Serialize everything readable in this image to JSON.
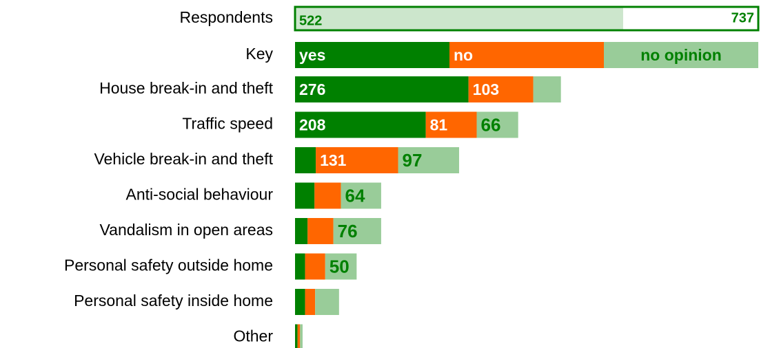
{
  "chart_data": {
    "type": "stacked-barh",
    "respondents": {
      "label": "Respondents",
      "value": 522,
      "total": 737
    },
    "key_label": "Key",
    "categories": [
      "House break-in and theft",
      "Traffic speed",
      "Vehicle break-in and theft",
      "Anti-social behaviour",
      "Vandalism in open areas",
      "Personal safety outside home",
      "Personal safety inside home",
      "Other"
    ],
    "series": [
      {
        "name": "yes",
        "color": "#008000",
        "label_color": "#ffffff",
        "values": [
          276,
          208,
          33,
          31,
          20,
          16,
          16,
          4
        ],
        "value_labels": [
          "276",
          "208",
          null,
          null,
          null,
          null,
          null,
          null
        ]
      },
      {
        "name": "no",
        "color": "#ff6600",
        "label_color": "#ffffff",
        "values": [
          103,
          81,
          131,
          42,
          41,
          32,
          16,
          4
        ],
        "value_labels": [
          "103",
          "81",
          "131",
          null,
          null,
          null,
          null,
          null
        ]
      },
      {
        "name": "no opinion",
        "color": "#99cc99",
        "label_color": "#008000",
        "values": [
          44,
          66,
          97,
          64,
          76,
          50,
          38,
          4
        ],
        "value_labels": [
          null,
          "66",
          "97",
          "64",
          "76",
          "50",
          null,
          null
        ]
      }
    ]
  }
}
